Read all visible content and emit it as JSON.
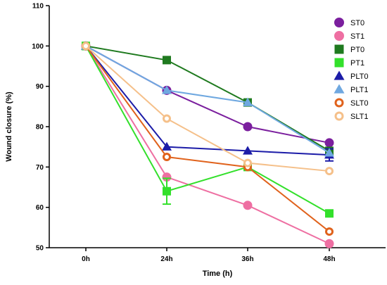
{
  "chart_data": {
    "type": "line",
    "title": "",
    "xlabel": "Time (h)",
    "ylabel": "Wound closure (%)",
    "categories": [
      "0h",
      "24h",
      "36h",
      "48h"
    ],
    "ylim": [
      50,
      110
    ],
    "yticks": [
      50,
      60,
      70,
      80,
      90,
      100,
      110
    ],
    "grid": false,
    "legend_position": "top-right",
    "series": [
      {
        "name": "ST0",
        "values": [
          100,
          89,
          80,
          76
        ],
        "color": "#7B1F9E",
        "marker": "circle-filled"
      },
      {
        "name": "ST1",
        "values": [
          100,
          67.5,
          60.5,
          51
        ],
        "color": "#EE6FA2",
        "marker": "circle-filled"
      },
      {
        "name": "PT0",
        "values": [
          100,
          96.5,
          86,
          74
        ],
        "color": "#1F7A1F",
        "marker": "square-filled"
      },
      {
        "name": "PT1",
        "values": [
          100,
          64,
          70,
          58.5
        ],
        "color": "#33E02B",
        "marker": "square-filled",
        "error_bars": [
          0,
          3.2,
          0,
          0
        ]
      },
      {
        "name": "PLT0",
        "values": [
          100,
          75,
          74,
          73
        ],
        "color": "#1C1CA8",
        "marker": "triangle-filled",
        "error_bars": [
          0,
          0,
          0,
          1.5
        ]
      },
      {
        "name": "PLT1",
        "values": [
          100,
          89,
          86,
          73.5
        ],
        "color": "#6FA8E0",
        "marker": "triangle-filled"
      },
      {
        "name": "SLT0",
        "values": [
          100,
          72.5,
          70,
          54
        ],
        "color": "#E0621C",
        "marker": "circle-open"
      },
      {
        "name": "SLT1",
        "values": [
          100,
          82,
          71,
          69
        ],
        "color": "#F5C08A",
        "marker": "circle-open"
      }
    ]
  }
}
